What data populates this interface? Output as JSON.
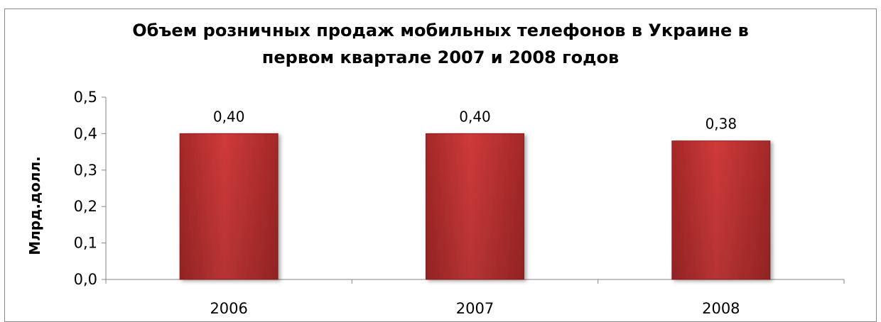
{
  "chart_data": {
    "type": "bar",
    "title_lines": [
      "Объем розничных продаж мобильных телефонов в Украине в",
      "первом квартале 2007 и 2008 годов"
    ],
    "xlabel": "",
    "ylabel": "Млрд.долл.",
    "categories": [
      "2006",
      "2007",
      "2008"
    ],
    "values": [
      0.4,
      0.4,
      0.38
    ],
    "data_labels": [
      "0,40",
      "0,40",
      "0,38"
    ],
    "ylim": [
      0,
      0.5
    ],
    "y_ticks": [
      0.0,
      0.1,
      0.2,
      0.3,
      0.4,
      0.5
    ],
    "y_tick_labels": [
      "0,0",
      "0,1",
      "0,2",
      "0,3",
      "0,4",
      "0,5"
    ],
    "grid": false,
    "legend": "none",
    "bar_color": "#cf3a3a",
    "bar_color_dark": "#a52828"
  }
}
